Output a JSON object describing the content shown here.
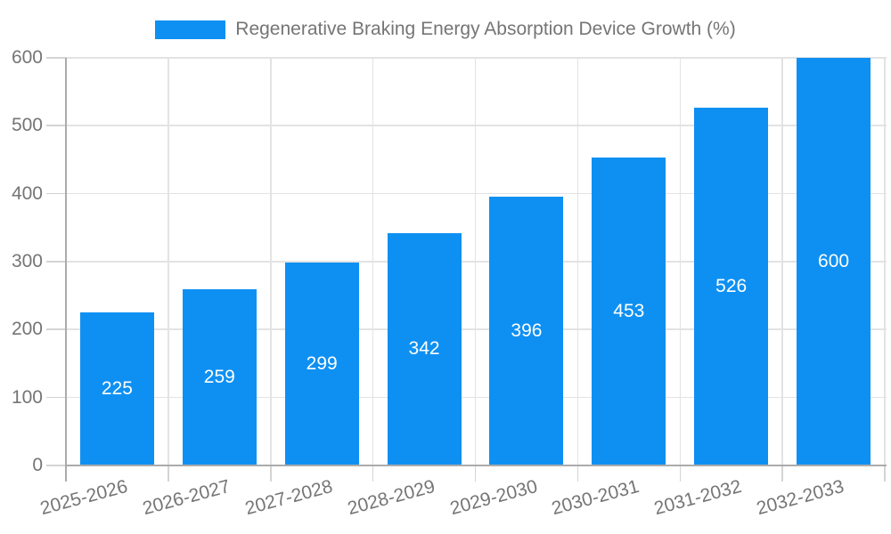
{
  "chart_data": {
    "type": "bar",
    "title": "Regenerative Braking Energy Absorption Device Growth (%)",
    "categories": [
      "2025-2026",
      "2026-2027",
      "2027-2028",
      "2028-2029",
      "2029-2030",
      "2030-2031",
      "2031-2032",
      "2032-2033"
    ],
    "values": [
      225,
      259,
      299,
      342,
      396,
      453,
      526,
      600
    ],
    "series": [
      {
        "name": "Regenerative Braking Energy Absorption Device Growth (%)",
        "values": [
          225,
          259,
          299,
          342,
          396,
          453,
          526,
          600
        ]
      }
    ],
    "xlabel": "",
    "ylabel": "",
    "ylim": [
      0,
      600
    ],
    "yticks": [
      0,
      100,
      200,
      300,
      400,
      500,
      600
    ],
    "grid": true,
    "legend_position": "top-center",
    "bar_label_position": "inside-middle",
    "x_label_rotation_deg": -15
  },
  "colors": {
    "bar": "#0e90f2",
    "bar_label": "#ffffff",
    "axis_text": "#757575",
    "axis_line": "#ababab",
    "grid_line": "#e3e3e3",
    "tick_line": "#d4d4d4",
    "background": "#ffffff"
  }
}
